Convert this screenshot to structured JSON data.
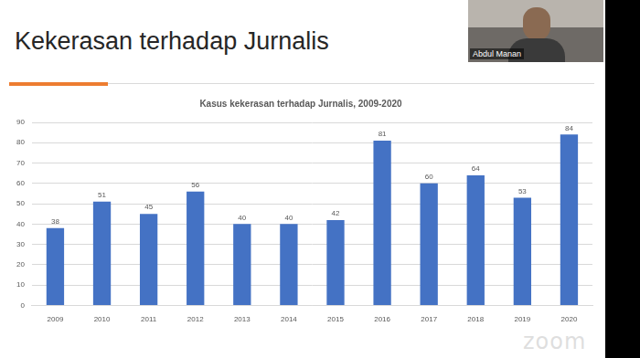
{
  "chart_data": {
    "type": "bar",
    "title": "Kekerasan terhadap Jurnalis",
    "subtitle": "Kasus kekerasan terhadap Jurnalis, 2009-2020",
    "categories": [
      "2009",
      "2010",
      "2011",
      "2012",
      "2013",
      "2014",
      "2015",
      "2016",
      "2017",
      "2018",
      "2019",
      "2020"
    ],
    "values": [
      38,
      51,
      45,
      56,
      40,
      40,
      42,
      81,
      60,
      64,
      53,
      84
    ],
    "color": "#4472c4",
    "ylim": [
      0,
      90
    ],
    "yticks": [
      0,
      10,
      20,
      30,
      40,
      50,
      60,
      70,
      80,
      90
    ],
    "grid": true,
    "data_labels": true,
    "annotations": [
      "Abdul Manan",
      "zoom"
    ]
  }
}
